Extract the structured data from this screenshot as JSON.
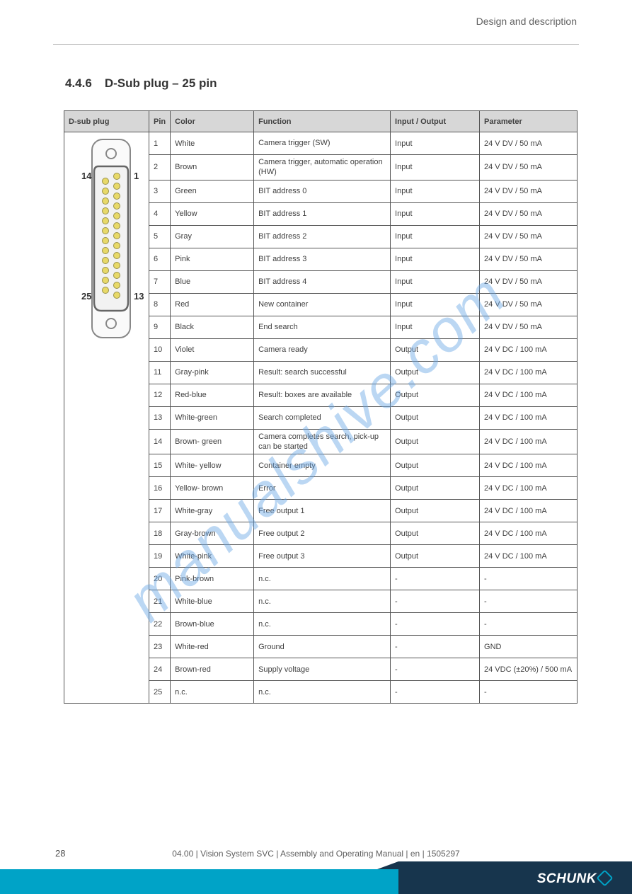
{
  "header": {
    "right_text": "Design and description"
  },
  "section": {
    "number": "4.4.6",
    "title": "D-Sub plug – 25 pin"
  },
  "watermark_text": "manualshive.com",
  "page_number": "28",
  "doc_id": "04.00 | Vision System SVC | Assembly and Operating Manual | en | 1505297",
  "logo_text": "SCHUNK",
  "table": {
    "columns": [
      "D-sub plug",
      "Pin",
      "Color",
      "Function",
      "Input / Output",
      "Parameter"
    ],
    "connector": {
      "top_left_label": "14",
      "top_right_label": "1",
      "bot_left_label": "25",
      "bot_right_label": "13"
    },
    "rows": [
      {
        "pin": "1",
        "color": "White",
        "func": "Camera trigger (SW)",
        "inout": "Input",
        "param": "24 V DV / 50 mA"
      },
      {
        "pin": "2",
        "color": "Brown",
        "func": "Camera trigger, automatic operation (HW)",
        "inout": "Input",
        "param": "24 V DV / 50 mA"
      },
      {
        "pin": "3",
        "color": "Green",
        "func": "BIT address 0",
        "inout": "Input",
        "param": "24 V DV / 50 mA"
      },
      {
        "pin": "4",
        "color": "Yellow",
        "func": "BIT address 1",
        "inout": "Input",
        "param": "24 V DV / 50 mA"
      },
      {
        "pin": "5",
        "color": "Gray",
        "func": "BIT address 2",
        "inout": "Input",
        "param": "24 V DV / 50 mA"
      },
      {
        "pin": "6",
        "color": "Pink",
        "func": "BIT address 3",
        "inout": "Input",
        "param": "24 V DV / 50 mA"
      },
      {
        "pin": "7",
        "color": "Blue",
        "func": "BIT address 4",
        "inout": "Input",
        "param": "24 V DV / 50 mA"
      },
      {
        "pin": "8",
        "color": "Red",
        "func": "New container",
        "inout": "Input",
        "param": "24 V DV / 50 mA"
      },
      {
        "pin": "9",
        "color": "Black",
        "func": "End search",
        "inout": "Input",
        "param": "24 V DV / 50 mA"
      },
      {
        "pin": "10",
        "color": "Violet",
        "func": "Camera ready",
        "inout": "Output",
        "param": "24 V DC / 100 mA"
      },
      {
        "pin": "11",
        "color": "Gray-pink",
        "func": "Result: search successful",
        "inout": "Output",
        "param": "24 V DC / 100 mA"
      },
      {
        "pin": "12",
        "color": "Red-blue",
        "func": "Result: boxes are available",
        "inout": "Output",
        "param": "24 V DC / 100 mA"
      },
      {
        "pin": "13",
        "color": "White-green",
        "func": "Search completed",
        "inout": "Output",
        "param": "24 V DC / 100 mA"
      },
      {
        "pin": "14",
        "color": "Brown-\ngreen",
        "func": "Camera completes search, pick-up can be started",
        "inout": "Output",
        "param": "24 V DC / 100 mA"
      },
      {
        "pin": "15",
        "color": "White-\nyellow",
        "func": "Container empty",
        "inout": "Output",
        "param": "24 V DC / 100 mA"
      },
      {
        "pin": "16",
        "color": "Yellow-\nbrown",
        "func": "Error",
        "inout": "Output",
        "param": "24 V DC / 100 mA"
      },
      {
        "pin": "17",
        "color": "White-gray",
        "func": "Free output 1",
        "inout": "Output",
        "param": "24 V DC / 100 mA"
      },
      {
        "pin": "18",
        "color": "Gray-brown",
        "func": "Free output 2",
        "inout": "Output",
        "param": "24 V DC / 100 mA"
      },
      {
        "pin": "19",
        "color": "White-pink",
        "func": "Free output 3",
        "inout": "Output",
        "param": "24 V DC / 100 mA"
      },
      {
        "pin": "20",
        "color": "Pink-brown",
        "func": "n.c.",
        "inout": "-",
        "param": "-"
      },
      {
        "pin": "21",
        "color": "White-blue",
        "func": "n.c.",
        "inout": "-",
        "param": "-"
      },
      {
        "pin": "22",
        "color": "Brown-blue",
        "func": "n.c.",
        "inout": "-",
        "param": "-"
      },
      {
        "pin": "23",
        "color": "White-red",
        "func": "Ground",
        "inout": "-",
        "param": "GND"
      },
      {
        "pin": "24",
        "color": "Brown-red",
        "func": "Supply voltage",
        "inout": "-",
        "param": "24 VDC (±20%) / 500 mA"
      },
      {
        "pin": "25",
        "color": "n.c.",
        "func": "n.c.",
        "inout": "-",
        "param": "-"
      }
    ]
  }
}
